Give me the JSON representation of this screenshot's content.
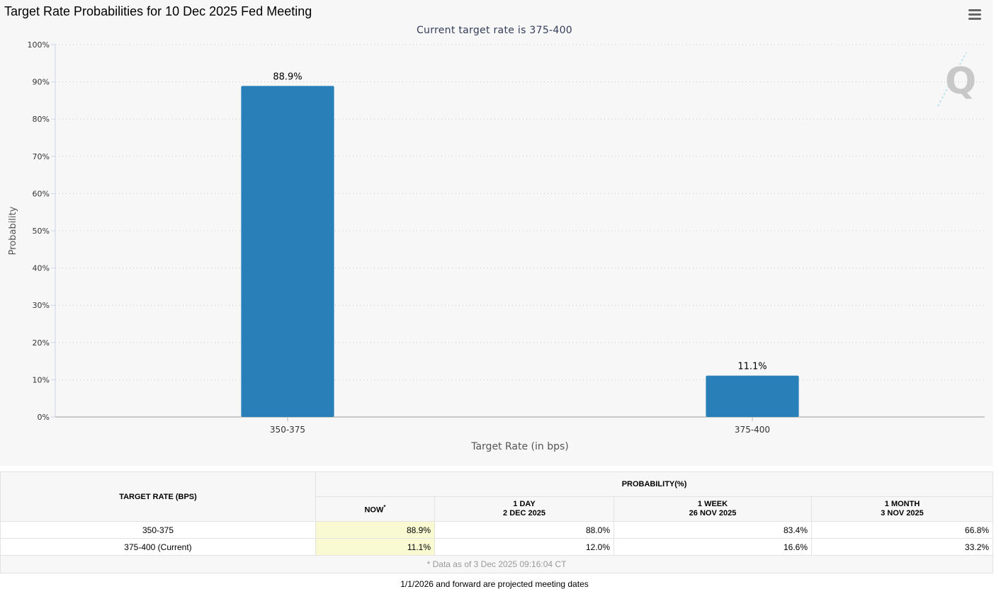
{
  "chart_data": {
    "type": "bar",
    "title": "Target Rate Probabilities for 10 Dec 2025 Fed Meeting",
    "subtitle": "Current target rate is 375-400",
    "categories": [
      "350-375",
      "375-400"
    ],
    "values": [
      88.9,
      11.1
    ],
    "value_labels": [
      "88.9%",
      "11.1%"
    ],
    "xlabel": "Target Rate (in bps)",
    "ylabel": "Probability",
    "ylim": [
      0,
      100
    ],
    "yticks": [
      0,
      10,
      20,
      30,
      40,
      50,
      60,
      70,
      80,
      90,
      100
    ],
    "ytick_labels": [
      "0%",
      "10%",
      "20%",
      "30%",
      "40%",
      "50%",
      "60%",
      "70%",
      "80%",
      "90%",
      "100%"
    ],
    "grid": true,
    "bar_color": "#2980b9"
  },
  "table": {
    "rate_header": "TARGET RATE (BPS)",
    "prob_header": "PROBABILITY(%)",
    "columns": [
      {
        "line1": "NOW",
        "marker": "*",
        "line2": ""
      },
      {
        "line1": "1 DAY",
        "line2": "2 DEC 2025"
      },
      {
        "line1": "1 WEEK",
        "line2": "26 NOV 2025"
      },
      {
        "line1": "1 MONTH",
        "line2": "3 NOV 2025"
      }
    ],
    "rows": [
      {
        "rate": "350-375",
        "now": "88.9%",
        "day": "88.0%",
        "week": "83.4%",
        "month": "66.8%"
      },
      {
        "rate": "375-400 (Current)",
        "now": "11.1%",
        "day": "12.0%",
        "week": "16.6%",
        "month": "33.2%"
      }
    ],
    "note": "* Data as of 3 Dec 2025 09:16:04 CT"
  },
  "footer_note": "1/1/2026 and forward are projected meeting dates",
  "icons": {
    "menu": "hamburger-menu-icon",
    "logo": "q-logo-icon"
  }
}
